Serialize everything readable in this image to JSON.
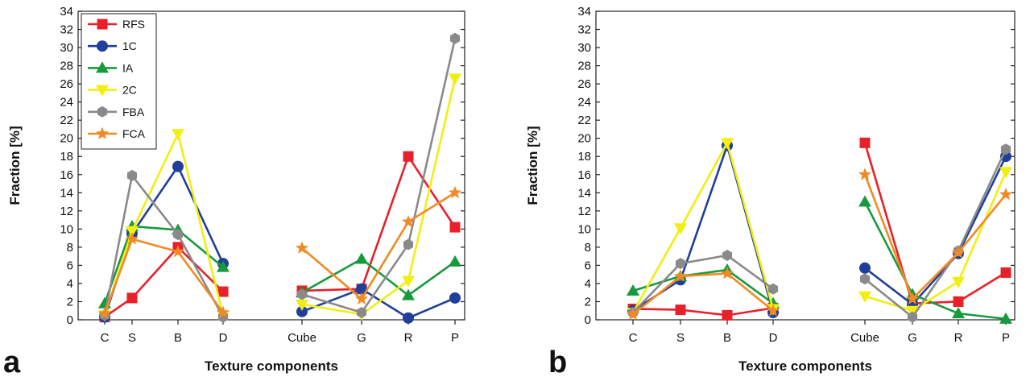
{
  "chart_data": [
    {
      "panel": "a",
      "type": "line",
      "xlabel": "Texture components",
      "ylabel": "Fraction [%]",
      "ylim": [
        0,
        34
      ],
      "yticks": [
        0,
        2,
        4,
        6,
        8,
        10,
        12,
        14,
        16,
        18,
        20,
        22,
        24,
        26,
        28,
        30,
        32,
        34
      ],
      "legend_position": "top-left",
      "groups": [
        {
          "categories": [
            "C",
            "S",
            "B",
            "D"
          ]
        },
        {
          "categories": [
            "Cube",
            "G",
            "R",
            "P"
          ]
        }
      ],
      "series": [
        {
          "name": "RFS",
          "color": "#e8202a",
          "marker": "square",
          "values": [
            [
              0.3,
              2.4,
              8.0,
              3.1
            ],
            [
              3.2,
              3.4,
              18.0,
              10.2
            ]
          ]
        },
        {
          "name": "1C",
          "color": "#1f3f9a",
          "marker": "circle",
          "values": [
            [
              0.3,
              9.5,
              16.9,
              6.2
            ],
            [
              0.9,
              3.4,
              0.2,
              2.4
            ]
          ]
        },
        {
          "name": "IA",
          "color": "#179a3c",
          "marker": "triangle-up",
          "values": [
            [
              1.8,
              10.3,
              9.9,
              5.8
            ],
            [
              3.0,
              6.7,
              2.7,
              6.4
            ]
          ]
        },
        {
          "name": "2C",
          "color": "#f2ee10",
          "marker": "triangle-down",
          "values": [
            [
              0.5,
              9.8,
              20.5,
              0.5
            ],
            [
              1.7,
              0.6,
              4.3,
              26.6
            ]
          ]
        },
        {
          "name": "FBA",
          "color": "#8a8a8a",
          "marker": "hexagon",
          "values": [
            [
              0.5,
              15.9,
              9.4,
              0.3
            ],
            [
              2.8,
              0.8,
              8.3,
              31.0
            ]
          ]
        },
        {
          "name": "FCA",
          "color": "#f28a24",
          "marker": "star",
          "values": [
            [
              0.7,
              8.9,
              7.5,
              0.8
            ],
            [
              7.9,
              2.3,
              10.8,
              14.0
            ]
          ]
        }
      ]
    },
    {
      "panel": "b",
      "type": "line",
      "xlabel": "Texture components",
      "ylabel": "Fraction [%]",
      "ylim": [
        0,
        34
      ],
      "yticks": [
        0,
        2,
        4,
        6,
        8,
        10,
        12,
        14,
        16,
        18,
        20,
        22,
        24,
        26,
        28,
        30,
        32,
        34
      ],
      "groups": [
        {
          "categories": [
            "C",
            "S",
            "B",
            "D"
          ]
        },
        {
          "categories": [
            "Cube",
            "G",
            "R",
            "P"
          ]
        }
      ],
      "series": [
        {
          "name": "RFS",
          "color": "#e8202a",
          "marker": "square",
          "values": [
            [
              1.2,
              1.1,
              0.5,
              1.3
            ],
            [
              19.5,
              1.8,
              2.0,
              5.2
            ]
          ]
        },
        {
          "name": "1C",
          "color": "#1f3f9a",
          "marker": "circle",
          "values": [
            [
              1.0,
              4.4,
              19.2,
              0.8
            ],
            [
              5.7,
              1.7,
              7.3,
              18.0
            ]
          ]
        },
        {
          "name": "IA",
          "color": "#179a3c",
          "marker": "triangle-up",
          "values": [
            [
              3.2,
              4.8,
              5.5,
              1.8
            ],
            [
              13.0,
              2.8,
              0.7,
              0.1
            ]
          ]
        },
        {
          "name": "2C",
          "color": "#f2ee10",
          "marker": "triangle-down",
          "values": [
            [
              0.8,
              10.1,
              19.5,
              1.2
            ],
            [
              2.6,
              1.0,
              4.2,
              16.3
            ]
          ]
        },
        {
          "name": "FBA",
          "color": "#8a8a8a",
          "marker": "hexagon",
          "values": [
            [
              0.8,
              6.2,
              7.1,
              3.4
            ],
            [
              4.5,
              0.3,
              7.6,
              18.8
            ]
          ]
        },
        {
          "name": "FCA",
          "color": "#f28a24",
          "marker": "star",
          "values": [
            [
              0.6,
              4.8,
              5.1,
              1.0
            ],
            [
              16.0,
              2.3,
              7.4,
              13.8
            ]
          ]
        }
      ]
    }
  ]
}
